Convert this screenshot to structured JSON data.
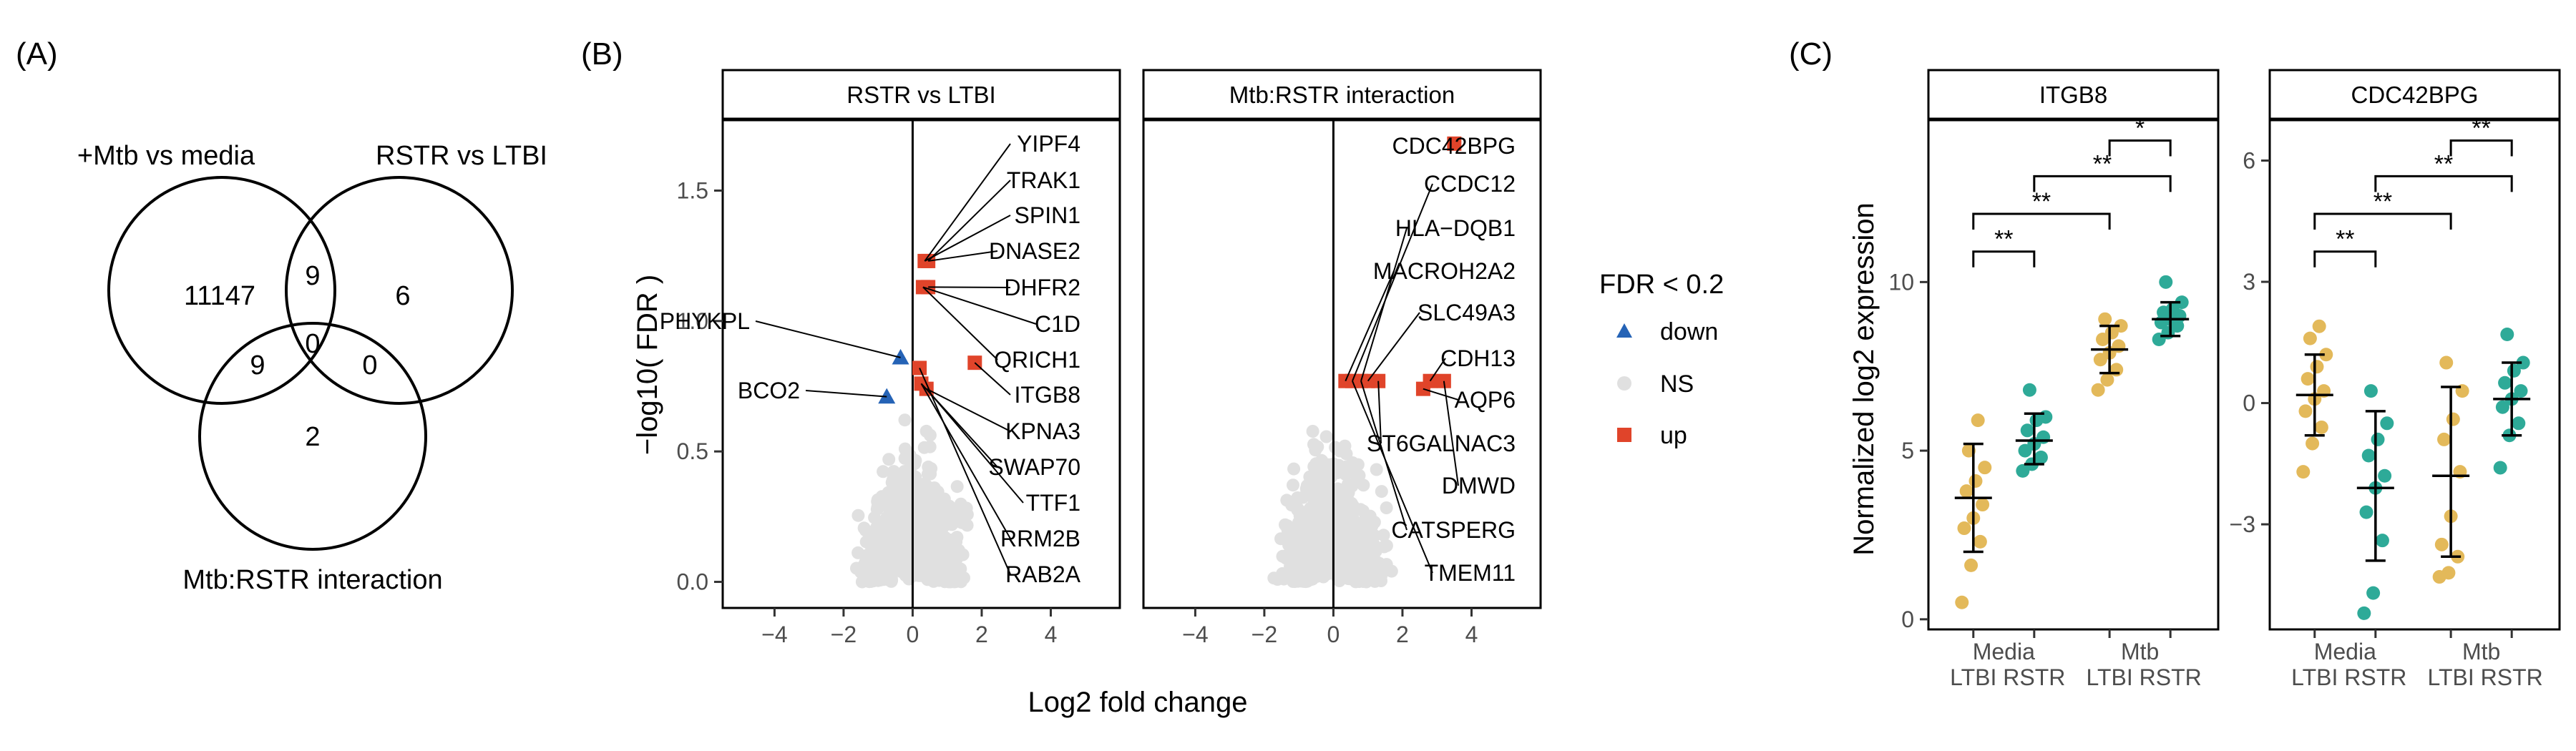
{
  "panel_letters": {
    "a": "(A)",
    "b": "(B)",
    "c": "(C)"
  },
  "venn": {
    "sets": [
      "+Mtb vs media",
      "RSTR vs LTBI",
      "Mtb:RSTR interaction"
    ],
    "regions": {
      "only_mtb": "11147",
      "only_rstr": "6",
      "only_interaction": "2",
      "mtb_rstr": "9",
      "mtb_interaction": "9",
      "rstr_interaction": "0",
      "all": "0"
    }
  },
  "chart_data": [
    {
      "type": "scatter",
      "subtype": "volcano",
      "panel": "B",
      "facets": [
        "RSTR vs LTBI",
        "Mtb:RSTR interaction"
      ],
      "xlabel": "Log2 fold change",
      "ylabel": "-log10( FDR )",
      "xlim": [
        -5.5,
        6.0
      ],
      "ylim": [
        -0.1,
        1.77
      ],
      "xticks": [
        -4,
        -2,
        0,
        2,
        4
      ],
      "yticks": [
        0.0,
        0.5,
        1.0,
        1.5
      ],
      "legend": {
        "title": "FDR < 0.2",
        "entries": [
          "down",
          "NS",
          "up"
        ],
        "position": "right"
      },
      "colors": {
        "down": "#2563b6",
        "NS": "#e0e0e0",
        "up": "#e0442a"
      },
      "vline_x": 0,
      "points": [
        {
          "facet": 0,
          "x": -0.35,
          "y": 0.86,
          "group": "down"
        },
        {
          "facet": 0,
          "x": -0.75,
          "y": 0.71,
          "group": "down"
        },
        {
          "facet": 0,
          "x": 0.35,
          "y": 1.23,
          "group": "up"
        },
        {
          "facet": 0,
          "x": 0.45,
          "y": 1.23,
          "group": "up"
        },
        {
          "facet": 0,
          "x": 0.3,
          "y": 1.13,
          "group": "up"
        },
        {
          "facet": 0,
          "x": 0.45,
          "y": 1.13,
          "group": "up"
        },
        {
          "facet": 0,
          "x": 1.8,
          "y": 0.84,
          "group": "up"
        },
        {
          "facet": 0,
          "x": 0.2,
          "y": 0.82,
          "group": "up"
        },
        {
          "facet": 0,
          "x": 0.25,
          "y": 0.76,
          "group": "up"
        },
        {
          "facet": 0,
          "x": 0.4,
          "y": 0.74,
          "group": "up"
        },
        {
          "facet": 1,
          "x": 3.5,
          "y": 1.68,
          "group": "up"
        },
        {
          "facet": 1,
          "x": 0.35,
          "y": 0.77,
          "group": "up"
        },
        {
          "facet": 1,
          "x": 0.55,
          "y": 0.77,
          "group": "up"
        },
        {
          "facet": 1,
          "x": 0.8,
          "y": 0.77,
          "group": "up"
        },
        {
          "facet": 1,
          "x": 1.0,
          "y": 0.77,
          "group": "up"
        },
        {
          "facet": 1,
          "x": 1.3,
          "y": 0.77,
          "group": "up"
        },
        {
          "facet": 1,
          "x": 2.6,
          "y": 0.74,
          "group": "up"
        },
        {
          "facet": 1,
          "x": 2.8,
          "y": 0.77,
          "group": "up"
        },
        {
          "facet": 1,
          "x": 3.2,
          "y": 0.77,
          "group": "up"
        }
      ],
      "labels": [
        {
          "facet": 0,
          "text": "PHYKPL",
          "point": 0
        },
        {
          "facet": 0,
          "text": "BCO2",
          "point": 1
        },
        {
          "facet": 0,
          "text": "YIPF4",
          "point": 2
        },
        {
          "facet": 0,
          "text": "TRAK1",
          "point": 3
        },
        {
          "facet": 0,
          "text": "SPIN1",
          "point": 2
        },
        {
          "facet": 0,
          "text": "DNASE2",
          "point": 3
        },
        {
          "facet": 0,
          "text": "DHFR2",
          "point": 5
        },
        {
          "facet": 0,
          "text": "C1D",
          "point": 4
        },
        {
          "facet": 0,
          "text": "QRICH1",
          "point": 4
        },
        {
          "facet": 0,
          "text": "ITGB8",
          "point": 6
        },
        {
          "facet": 0,
          "text": "KPNA3",
          "point": 9
        },
        {
          "facet": 0,
          "text": "SWAP70",
          "point": 8
        },
        {
          "facet": 0,
          "text": "TTF1",
          "point": 9
        },
        {
          "facet": 0,
          "text": "RRM2B",
          "point": 8
        },
        {
          "facet": 0,
          "text": "RAB2A",
          "point": 7
        },
        {
          "facet": 1,
          "text": "CDC42BPG",
          "point": 10
        },
        {
          "facet": 1,
          "text": "CCDC12",
          "point": 12
        },
        {
          "facet": 1,
          "text": "HLA−DQB1",
          "point": 13
        },
        {
          "facet": 1,
          "text": "MACROH2A2",
          "point": 11
        },
        {
          "facet": 1,
          "text": "SLC49A3",
          "point": 14
        },
        {
          "facet": 1,
          "text": "CDH13",
          "point": 17
        },
        {
          "facet": 1,
          "text": "AQP6",
          "point": 16
        },
        {
          "facet": 1,
          "text": "ST6GALNAC3",
          "point": 15
        },
        {
          "facet": 1,
          "text": "DMWD",
          "point": 18
        },
        {
          "facet": 1,
          "text": "CATSPERG",
          "point": 13
        },
        {
          "facet": 1,
          "text": "TMEM11",
          "point": 12
        }
      ]
    },
    {
      "type": "scatter",
      "subtype": "dot-errorbar",
      "panel": "C",
      "facets": [
        "ITGB8",
        "CDC42BPG"
      ],
      "ylabel": "Normalized log2 expression",
      "categories": [
        "LTBI",
        "RSTR",
        "LTBI",
        "RSTR"
      ],
      "category_groups": [
        "Media",
        "Mtb"
      ],
      "colors": {
        "LTBI": "#e3b95a",
        "RSTR": "#2eaa98"
      },
      "panels": [
        {
          "facet": "ITGB8",
          "ylim": [
            -0.3,
            14.8
          ],
          "yticks": [
            0,
            5,
            10
          ],
          "groups": [
            {
              "mean": 3.6,
              "lo": 2.0,
              "hi": 5.2,
              "points": [
                0.5,
                1.6,
                2.3,
                2.7,
                3.0,
                3.4,
                3.8,
                4.1,
                4.5,
                5.0,
                5.9
              ]
            },
            {
              "mean": 5.3,
              "lo": 4.6,
              "hi": 6.1,
              "points": [
                4.4,
                4.6,
                4.8,
                5.0,
                5.2,
                5.4,
                5.6,
                5.9,
                6.0,
                6.8
              ]
            },
            {
              "mean": 8.0,
              "lo": 7.3,
              "hi": 8.7,
              "points": [
                6.8,
                7.1,
                7.4,
                7.7,
                7.9,
                8.1,
                8.3,
                8.5,
                8.7,
                8.9
              ]
            },
            {
              "mean": 8.9,
              "lo": 8.4,
              "hi": 9.4,
              "points": [
                8.3,
                8.5,
                8.7,
                8.8,
                8.9,
                9.0,
                9.1,
                9.2,
                9.4,
                10.0
              ]
            }
          ],
          "brackets": [
            {
              "from": 0,
              "to": 1,
              "label": "**"
            },
            {
              "from": 0,
              "to": 2,
              "label": "**"
            },
            {
              "from": 1,
              "to": 3,
              "label": "**"
            },
            {
              "from": 2,
              "to": 3,
              "label": "*"
            }
          ]
        },
        {
          "facet": "CDC42BPG",
          "ylim": [
            -5.6,
            7.0
          ],
          "yticks": [
            -3,
            0,
            3,
            6
          ],
          "groups": [
            {
              "mean": 0.2,
              "lo": -0.8,
              "hi": 1.2,
              "points": [
                -1.7,
                -1.0,
                -0.6,
                -0.2,
                0.1,
                0.3,
                0.6,
                0.9,
                1.2,
                1.6,
                1.9
              ]
            },
            {
              "mean": -2.1,
              "lo": -3.9,
              "hi": -0.2,
              "points": [
                -5.2,
                -4.7,
                -3.4,
                -2.7,
                -2.1,
                -1.8,
                -1.3,
                -0.9,
                -0.5,
                0.3
              ]
            },
            {
              "mean": -1.8,
              "lo": -3.8,
              "hi": 0.4,
              "points": [
                -4.3,
                -4.2,
                -3.8,
                -3.5,
                -2.8,
                -1.7,
                -0.9,
                -0.4,
                0.3,
                1.0
              ]
            },
            {
              "mean": 0.1,
              "lo": -0.8,
              "hi": 1.0,
              "points": [
                -1.6,
                -0.8,
                -0.5,
                -0.1,
                0.1,
                0.3,
                0.5,
                0.8,
                1.0,
                1.7
              ]
            }
          ],
          "brackets": [
            {
              "from": 0,
              "to": 1,
              "label": "**"
            },
            {
              "from": 0,
              "to": 2,
              "label": "**"
            },
            {
              "from": 1,
              "to": 3,
              "label": "**"
            },
            {
              "from": 2,
              "to": 3,
              "label": "**"
            }
          ]
        }
      ]
    }
  ]
}
